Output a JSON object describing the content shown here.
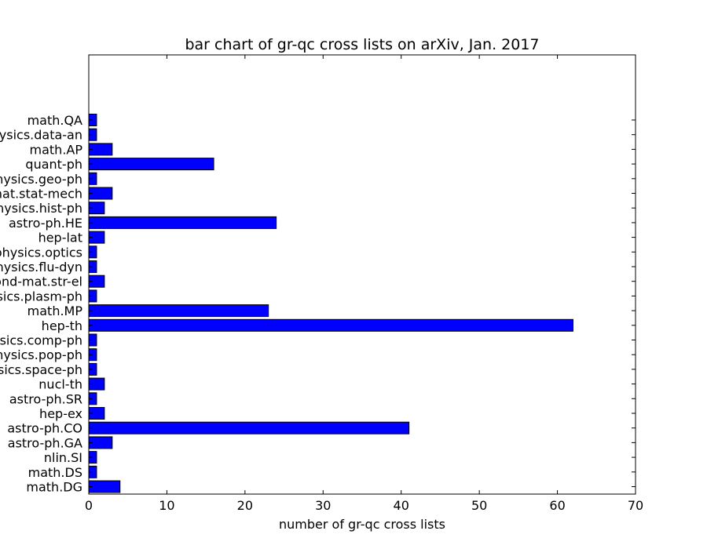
{
  "chart_data": {
    "type": "bar",
    "orientation": "horizontal",
    "title": "bar chart of gr-qc cross lists on arXiv, Jan. 2017",
    "xlabel": "number of gr-qc cross lists",
    "ylabel": "",
    "xlim": [
      0,
      70
    ],
    "xticks": [
      0,
      10,
      20,
      30,
      40,
      50,
      60,
      70
    ],
    "grid": false,
    "legend": "none",
    "bar_color": "#0000ff",
    "edge_color": "#000000",
    "categories": [
      "math.DG",
      "math.DS",
      "nlin.SI",
      "astro-ph.GA",
      "astro-ph.CO",
      "hep-ex",
      "astro-ph.SR",
      "nucl-th",
      "physics.space-ph",
      "physics.pop-ph",
      "physics.comp-ph",
      "hep-th",
      "math.MP",
      "physics.plasm-ph",
      "cond-mat.str-el",
      "physics.flu-dyn",
      "physics.optics",
      "hep-lat",
      "astro-ph.HE",
      "physics.hist-ph",
      "cond-mat.stat-mech",
      "physics.geo-ph",
      "quant-ph",
      "math.AP",
      "physics.data-an",
      "math.QA"
    ],
    "values": [
      4,
      1,
      1,
      3,
      41,
      2,
      1,
      2,
      1,
      1,
      1,
      62,
      23,
      1,
      2,
      1,
      1,
      2,
      24,
      2,
      3,
      1,
      16,
      3,
      1,
      1
    ]
  }
}
